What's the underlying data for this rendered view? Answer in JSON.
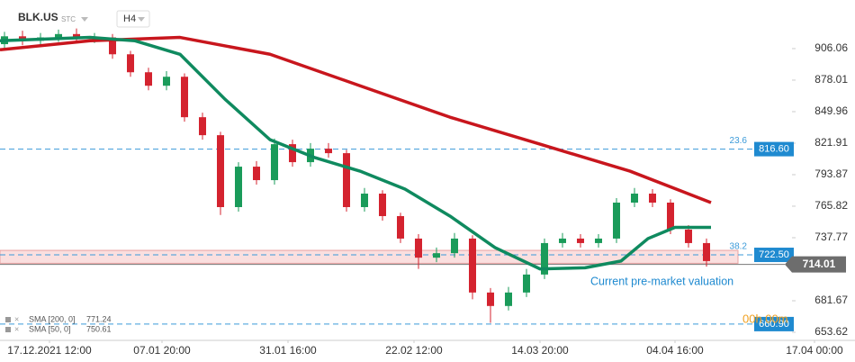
{
  "header": {
    "symbol": "BLK.US",
    "market": "STC",
    "timeframe": "H4"
  },
  "chart_data": {
    "type": "candlestick",
    "up_color": "#1a9b5a",
    "down_color": "#d4232f",
    "ylim": [
      646.4,
      949.3
    ],
    "yticks": [
      {
        "value": 906.06,
        "label": "906.06"
      },
      {
        "value": 878.01,
        "label": "878.01"
      },
      {
        "value": 849.96,
        "label": "849.96"
      },
      {
        "value": 821.91,
        "label": "821.91"
      },
      {
        "value": 793.87,
        "label": "793.87"
      },
      {
        "value": 765.82,
        "label": "765.82"
      },
      {
        "value": 737.77,
        "label": "737.77"
      },
      {
        "value": 681.67,
        "label": "681.67"
      },
      {
        "value": 653.62,
        "label": "653.62"
      }
    ],
    "xlim": [
      0,
      95
    ],
    "xticks": [
      {
        "value": 5.5,
        "label": "17.12.2021  12:00"
      },
      {
        "value": 18,
        "label": "07.01  20:00"
      },
      {
        "value": 32,
        "label": "31.01  16:00"
      },
      {
        "value": 46,
        "label": "22.02  12:00"
      },
      {
        "value": 60,
        "label": "14.03  20:00"
      },
      {
        "value": 75,
        "label": "04.04  16:00"
      },
      {
        "value": 90.5,
        "label": "17.04  00:00"
      }
    ],
    "x": [
      0.5,
      2.5,
      4.5,
      6.5,
      8.5,
      10.5,
      12.5,
      14.5,
      16.5,
      18.5,
      20.5,
      22.5,
      24.5,
      26.5,
      28.5,
      30.5,
      32.5,
      34.5,
      36.5,
      38.5,
      40.5,
      42.5,
      44.5,
      46.5,
      48.5,
      50.5,
      52.5,
      54.5,
      56.5,
      58.5,
      60.5,
      62.5,
      64.5,
      66.5,
      68.5,
      70.5,
      72.5,
      74.5,
      76.5,
      78.5
    ],
    "candles": [
      [
        910,
        921,
        906,
        917
      ],
      [
        917,
        922,
        909,
        913
      ],
      [
        913,
        920,
        909,
        916
      ],
      [
        916,
        923,
        912,
        919
      ],
      [
        919,
        924,
        911,
        915
      ],
      [
        915,
        920,
        911,
        916
      ],
      [
        916,
        919,
        897,
        901
      ],
      [
        901,
        904,
        881,
        885
      ],
      [
        885,
        889,
        869,
        873
      ],
      [
        873,
        886,
        869,
        881
      ],
      [
        881,
        884,
        841,
        845
      ],
      [
        845,
        849,
        825,
        829
      ],
      [
        829,
        832,
        758,
        765
      ],
      [
        765,
        805,
        761,
        801
      ],
      [
        801,
        806,
        785,
        789
      ],
      [
        789,
        826,
        785,
        821
      ],
      [
        821,
        825,
        801,
        805
      ],
      [
        805,
        822,
        801,
        817
      ],
      [
        817,
        822,
        809,
        813
      ],
      [
        813,
        816,
        761,
        765
      ],
      [
        765,
        782,
        761,
        777
      ],
      [
        777,
        780,
        753,
        757
      ],
      [
        757,
        760,
        733,
        737
      ],
      [
        737,
        741,
        710,
        720
      ],
      [
        720,
        729,
        716,
        724
      ],
      [
        724,
        742,
        720,
        737
      ],
      [
        737,
        740,
        683,
        689
      ],
      [
        689,
        693,
        662,
        677
      ],
      [
        677,
        694,
        673,
        689
      ],
      [
        689,
        710,
        685,
        705
      ],
      [
        705,
        737,
        701,
        733
      ],
      [
        733,
        742,
        729,
        737
      ],
      [
        737,
        741,
        729,
        733
      ],
      [
        733,
        741,
        729,
        737
      ],
      [
        737,
        773,
        733,
        769
      ],
      [
        769,
        782,
        765,
        777
      ],
      [
        777,
        781,
        765,
        769
      ],
      [
        769,
        772,
        741,
        745
      ],
      [
        745,
        749,
        729,
        733
      ],
      [
        733,
        737,
        712,
        717
      ]
    ],
    "series": [
      {
        "name": "SMA [200, 0]",
        "legend_value": 771.24,
        "color": "#c8161d",
        "x": [
          0,
          10,
          20,
          30,
          40,
          50,
          60,
          70,
          79
        ],
        "values": [
          905,
          913,
          916,
          901,
          873,
          845,
          821,
          797,
          769
        ]
      },
      {
        "name": "SMA [50, 0]",
        "legend_value": 750.61,
        "color": "#0f8a5f",
        "x": [
          0,
          10,
          15,
          20,
          25,
          30,
          35,
          40,
          45,
          50,
          55,
          60,
          65,
          69,
          72,
          75,
          79
        ],
        "values": [
          913,
          916,
          913,
          901,
          861,
          825,
          809,
          797,
          781,
          757,
          729,
          710,
          711,
          717,
          737,
          747,
          747
        ]
      }
    ],
    "levels": [
      {
        "value": 816.6,
        "label": "816.60",
        "fib": "23.6"
      },
      {
        "value": 722.5,
        "label": "722.50",
        "fib": "38.2"
      },
      {
        "value": 660.9,
        "label": "660.90"
      }
    ],
    "current_price": {
      "value": 714.01,
      "label": "714.01"
    },
    "zone": [
      715,
      726.5
    ],
    "annotation": "Current pre-market valuation",
    "countdown": "00h 00m"
  }
}
